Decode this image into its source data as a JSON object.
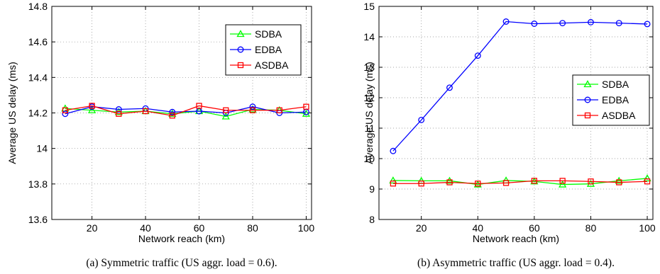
{
  "chart_data": [
    {
      "type": "line",
      "xlabel": "Network reach (km)",
      "ylabel": "Average US delay (ms)",
      "x": [
        10,
        20,
        30,
        40,
        50,
        60,
        70,
        80,
        90,
        100
      ],
      "xlim": [
        5,
        102
      ],
      "ylim": [
        13.6,
        14.8
      ],
      "xticks": [
        "20",
        "40",
        "60",
        "80",
        "100"
      ],
      "yticks": [
        "13.6",
        "13.8",
        "14",
        "14.2",
        "14.4",
        "14.6",
        "14.8"
      ],
      "grid": true,
      "legend_position": "upper-right",
      "caption": "(a)  Symmetric traffic (US aggr. load = 0.6).",
      "series": [
        {
          "name": "SDBA",
          "marker": "triangle",
          "color": "#00ff00",
          "values": [
            14.225,
            14.215,
            14.205,
            14.21,
            14.195,
            14.21,
            14.18,
            14.22,
            14.215,
            14.195
          ]
        },
        {
          "name": "EDBA",
          "marker": "circle",
          "color": "#0000ff",
          "values": [
            14.195,
            14.235,
            14.22,
            14.225,
            14.205,
            14.21,
            14.2,
            14.235,
            14.2,
            14.205
          ]
        },
        {
          "name": "ASDBA",
          "marker": "square",
          "color": "#ff0000",
          "values": [
            14.215,
            14.24,
            14.195,
            14.21,
            14.185,
            14.24,
            14.215,
            14.215,
            14.215,
            14.235
          ]
        }
      ]
    },
    {
      "type": "line",
      "xlabel": "Network reach (km)",
      "ylabel": "Average US delay (ms)",
      "x": [
        10,
        20,
        30,
        40,
        50,
        60,
        70,
        80,
        90,
        100
      ],
      "xlim": [
        5,
        102
      ],
      "ylim": [
        8,
        15
      ],
      "xticks": [
        "20",
        "40",
        "60",
        "80",
        "100"
      ],
      "yticks": [
        "8",
        "9",
        "10",
        "11",
        "12",
        "13",
        "14",
        "15"
      ],
      "grid": true,
      "legend_position": "center-right",
      "caption": "(b)  Asymmetric traffic (US aggr. load = 0.4).",
      "series": [
        {
          "name": "SDBA",
          "marker": "triangle",
          "color": "#00ff00",
          "values": [
            9.28,
            9.27,
            9.27,
            9.15,
            9.28,
            9.25,
            9.15,
            9.17,
            9.27,
            9.35
          ]
        },
        {
          "name": "EDBA",
          "marker": "circle",
          "color": "#0000ff",
          "values": [
            10.25,
            11.27,
            12.33,
            13.38,
            14.5,
            14.43,
            14.45,
            14.48,
            14.45,
            14.42
          ]
        },
        {
          "name": "ASDBA",
          "marker": "square",
          "color": "#ff0000",
          "values": [
            9.18,
            9.18,
            9.22,
            9.18,
            9.2,
            9.27,
            9.27,
            9.25,
            9.22,
            9.25
          ]
        }
      ]
    }
  ]
}
